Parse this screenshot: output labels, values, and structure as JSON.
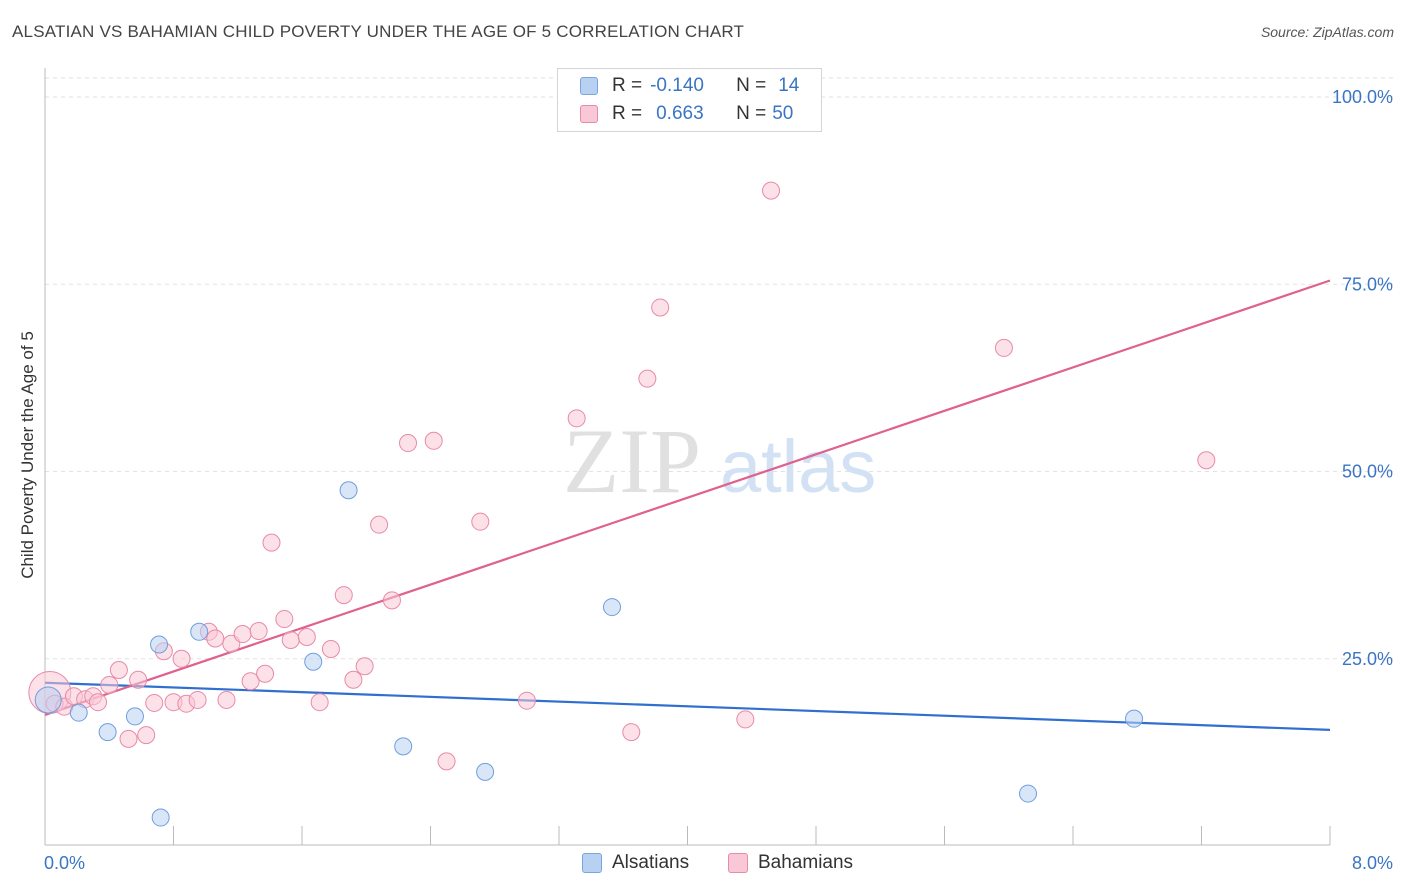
{
  "title": "ALSATIAN VS BAHAMIAN CHILD POVERTY UNDER THE AGE OF 5 CORRELATION CHART",
  "source": "Source: ZipAtlas.com",
  "watermark": {
    "zip": "ZIP",
    "atlas": "atlas"
  },
  "legend": {
    "rows": [
      {
        "r_label": "R =",
        "r_value": "-0.140",
        "n_label": "N =",
        "n_value": "14",
        "color": "#b8d1f3",
        "border": "#7aa6e0"
      },
      {
        "r_label": "R =",
        "r_value": "0.663",
        "n_label": "N =",
        "n_value": "50",
        "color": "#f9c8d7",
        "border": "#e88aa8"
      }
    ]
  },
  "bottom_legend": {
    "alsatians": "Alsatians",
    "bahamians": "Bahamians"
  },
  "chart_data": {
    "type": "scatter",
    "title": "ALSATIAN VS BAHAMIAN CHILD POVERTY UNDER THE AGE OF 5 CORRELATION CHART",
    "xlabel": "",
    "ylabel": "Child Poverty Under the Age of 5",
    "xlim": [
      0,
      8
    ],
    "ylim": [
      0,
      100
    ],
    "x_tick_labels": [
      "0.0%",
      "8.0%"
    ],
    "y_tick_labels": [
      "100.0%",
      "75.0%",
      "50.0%",
      "25.0%"
    ],
    "y_ticks": [
      100,
      75,
      50,
      25
    ],
    "grid": true,
    "series": [
      {
        "name": "Alsatians",
        "color": "#b8d1f3",
        "stroke": "#6f9fde",
        "trend_color": "#2f6fd0",
        "trend": {
          "x0": 0,
          "y0": 21.8,
          "x1": 8,
          "y1": 15.5
        },
        "points": [
          {
            "x": 0.02,
            "y": 19.5
          },
          {
            "x": 0.21,
            "y": 17.8
          },
          {
            "x": 0.39,
            "y": 15.2
          },
          {
            "x": 0.56,
            "y": 17.3
          },
          {
            "x": 0.71,
            "y": 26.9
          },
          {
            "x": 0.96,
            "y": 28.6
          },
          {
            "x": 0.72,
            "y": 3.8
          },
          {
            "x": 1.67,
            "y": 24.6
          },
          {
            "x": 1.89,
            "y": 47.5
          },
          {
            "x": 2.23,
            "y": 13.3
          },
          {
            "x": 2.74,
            "y": 9.9
          },
          {
            "x": 3.53,
            "y": 31.9
          },
          {
            "x": 6.12,
            "y": 7.0
          },
          {
            "x": 6.78,
            "y": 17.0
          }
        ]
      },
      {
        "name": "Bahamians",
        "color": "#f9c8d7",
        "stroke": "#e88aa8",
        "trend_color": "#e0608e",
        "trend": {
          "x0": 0,
          "y0": 17.5,
          "x1": 8,
          "y1": 75.5
        },
        "points": [
          {
            "x": 0.03,
            "y": 20.5
          },
          {
            "x": 0.06,
            "y": 19.0
          },
          {
            "x": 0.12,
            "y": 18.6
          },
          {
            "x": 0.18,
            "y": 20.0
          },
          {
            "x": 0.25,
            "y": 19.6
          },
          {
            "x": 0.3,
            "y": 20.0
          },
          {
            "x": 0.33,
            "y": 19.2
          },
          {
            "x": 0.4,
            "y": 21.5
          },
          {
            "x": 0.46,
            "y": 23.5
          },
          {
            "x": 0.52,
            "y": 14.3
          },
          {
            "x": 0.58,
            "y": 22.2
          },
          {
            "x": 0.63,
            "y": 14.8
          },
          {
            "x": 0.68,
            "y": 19.1
          },
          {
            "x": 0.74,
            "y": 26.0
          },
          {
            "x": 0.8,
            "y": 19.2
          },
          {
            "x": 0.85,
            "y": 25.0
          },
          {
            "x": 0.88,
            "y": 19.0
          },
          {
            "x": 0.95,
            "y": 19.5
          },
          {
            "x": 1.02,
            "y": 28.6
          },
          {
            "x": 1.06,
            "y": 27.7
          },
          {
            "x": 1.13,
            "y": 19.5
          },
          {
            "x": 1.16,
            "y": 27.0
          },
          {
            "x": 1.23,
            "y": 28.3
          },
          {
            "x": 1.28,
            "y": 22.0
          },
          {
            "x": 1.33,
            "y": 28.7
          },
          {
            "x": 1.37,
            "y": 23.0
          },
          {
            "x": 1.41,
            "y": 40.5
          },
          {
            "x": 1.49,
            "y": 30.3
          },
          {
            "x": 1.53,
            "y": 27.5
          },
          {
            "x": 1.63,
            "y": 27.9
          },
          {
            "x": 1.71,
            "y": 19.2
          },
          {
            "x": 1.78,
            "y": 26.3
          },
          {
            "x": 1.86,
            "y": 33.5
          },
          {
            "x": 1.92,
            "y": 22.2
          },
          {
            "x": 1.99,
            "y": 24.0
          },
          {
            "x": 2.08,
            "y": 42.9
          },
          {
            "x": 2.16,
            "y": 32.8
          },
          {
            "x": 2.26,
            "y": 53.8
          },
          {
            "x": 2.42,
            "y": 54.1
          },
          {
            "x": 2.5,
            "y": 11.3
          },
          {
            "x": 2.71,
            "y": 43.3
          },
          {
            "x": 3.0,
            "y": 19.4
          },
          {
            "x": 3.31,
            "y": 57.1
          },
          {
            "x": 3.65,
            "y": 15.2
          },
          {
            "x": 3.75,
            "y": 62.4
          },
          {
            "x": 3.83,
            "y": 71.9
          },
          {
            "x": 4.36,
            "y": 16.9
          },
          {
            "x": 4.52,
            "y": 87.5
          },
          {
            "x": 5.97,
            "y": 66.5
          },
          {
            "x": 7.23,
            "y": 51.5
          }
        ]
      }
    ]
  }
}
